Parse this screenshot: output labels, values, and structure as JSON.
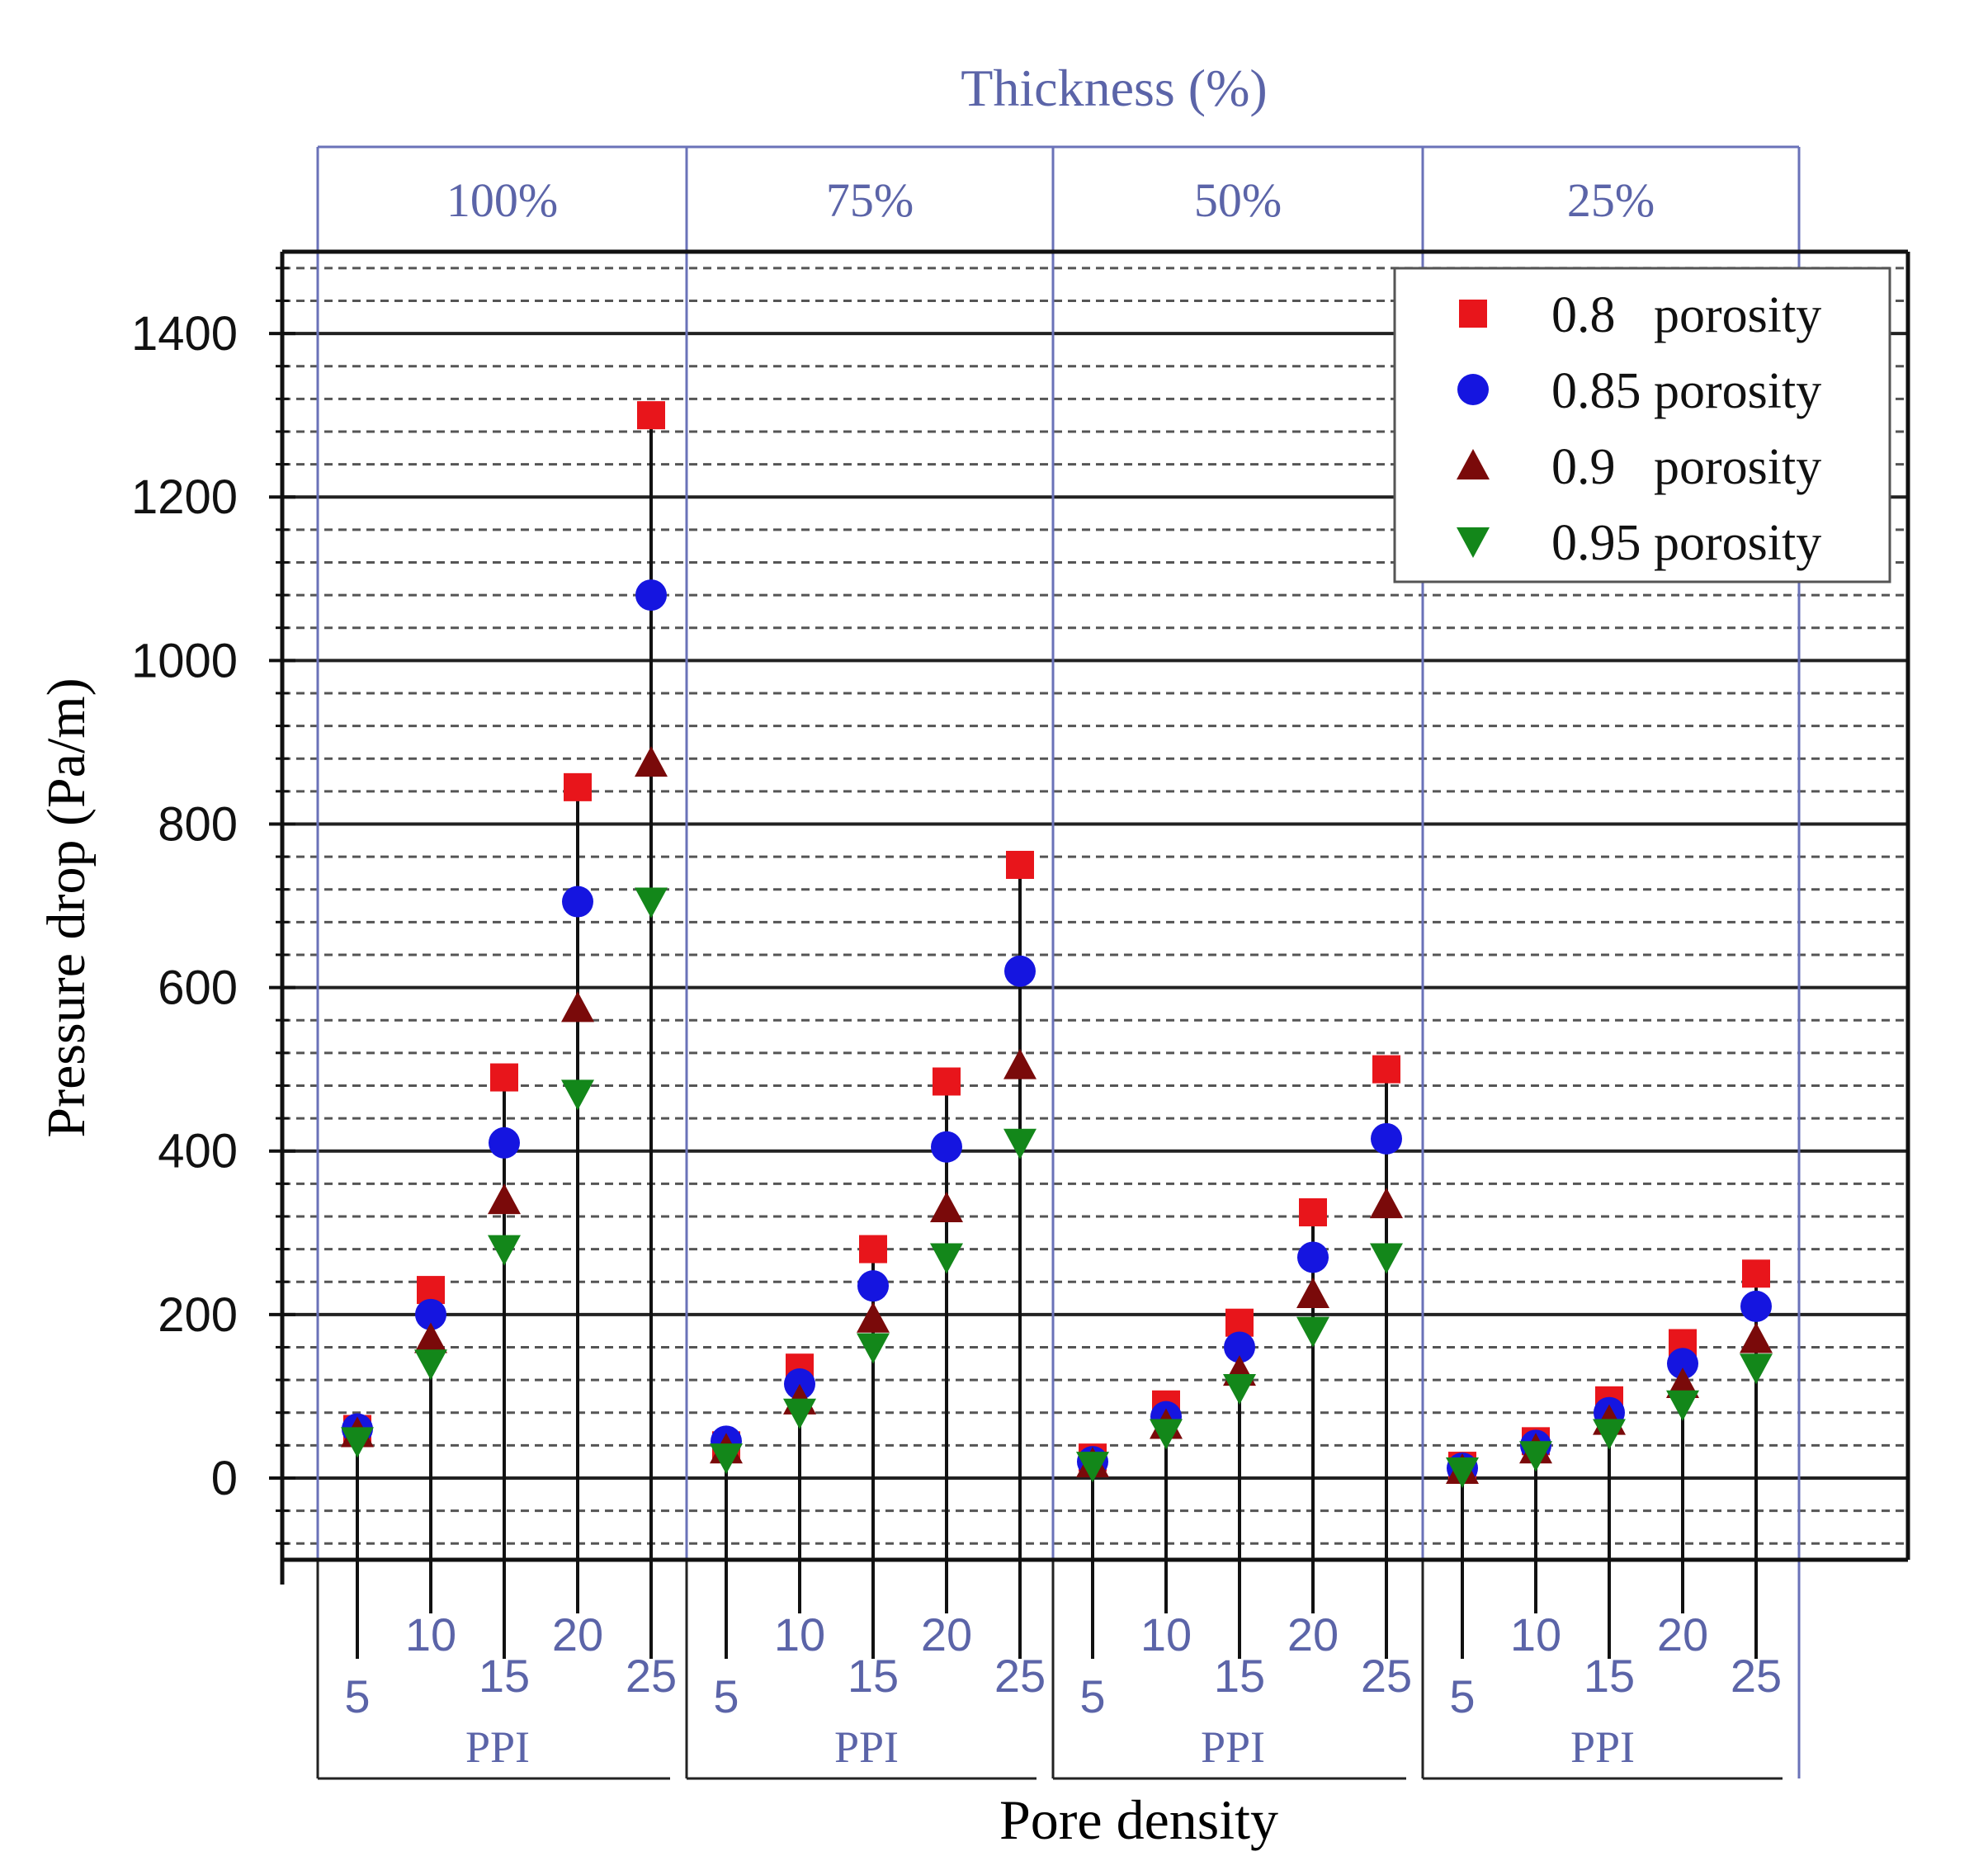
{
  "chart_data": {
    "type": "scatter",
    "title": "Thickness (%)",
    "xlabel": "Pore density",
    "ylabel": "Pressure drop (Pa/m)",
    "ylim": [
      -100,
      1500
    ],
    "yticks": [
      0,
      200,
      400,
      600,
      800,
      1000,
      1200,
      1400
    ],
    "x_unit_label": "PPI",
    "groups": [
      "100%",
      "75%",
      "50%",
      "25%"
    ],
    "ppi": [
      "5",
      "10",
      "15",
      "20",
      "25"
    ],
    "series": [
      {
        "name": "0.8   porosity",
        "marker": "square",
        "color": "#e8151b",
        "values": [
          [
            60,
            230,
            490,
            845,
            1300
          ],
          [
            40,
            135,
            280,
            485,
            750
          ],
          [
            25,
            90,
            190,
            325,
            500
          ],
          [
            15,
            45,
            95,
            165,
            250
          ]
        ]
      },
      {
        "name": "0.85 porosity",
        "marker": "circle",
        "color": "#1515e0",
        "values": [
          [
            60,
            200,
            410,
            705,
            1080
          ],
          [
            45,
            115,
            235,
            405,
            620
          ],
          [
            20,
            75,
            160,
            270,
            415
          ],
          [
            12,
            40,
            80,
            140,
            210
          ]
        ]
      },
      {
        "name": "0.9   porosity",
        "marker": "triangle-up",
        "color": "#7a0a0a",
        "values": [
          [
            55,
            170,
            340,
            575,
            875
          ],
          [
            35,
            95,
            195,
            330,
            505
          ],
          [
            18,
            65,
            130,
            225,
            335
          ],
          [
            10,
            35,
            70,
            115,
            170
          ]
        ]
      },
      {
        "name": "0.95 porosity",
        "marker": "triangle-down",
        "color": "#13871a",
        "values": [
          [
            45,
            140,
            280,
            470,
            705
          ],
          [
            25,
            80,
            160,
            270,
            410
          ],
          [
            15,
            55,
            110,
            180,
            270
          ],
          [
            8,
            28,
            55,
            90,
            135
          ]
        ]
      }
    ],
    "legend_position": "top-right",
    "grid": true
  }
}
